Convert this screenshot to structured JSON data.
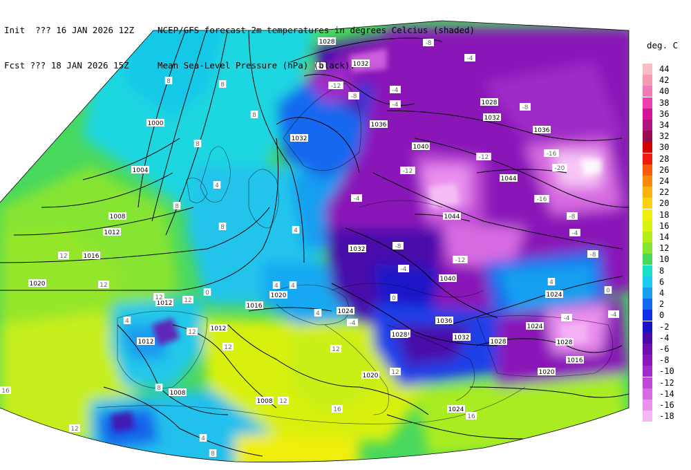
{
  "header": {
    "init_label": "Init  ??? 16 JAN 2026 12Z",
    "fcst_label": "Fcst ??? 18 JAN 2026 15Z",
    "title_line1": "NCEP/GFS forecast 2m temperatures in degrees Celcius (shaded)",
    "title_line2": "Mean Sea-Level Pressure (hPa) (black)."
  },
  "legend": {
    "title": "deg. C",
    "entries": [
      {
        "label": "44",
        "color": "#f7bcc4"
      },
      {
        "label": "42",
        "color": "#f49ab1"
      },
      {
        "label": "40",
        "color": "#f27ab6"
      },
      {
        "label": "38",
        "color": "#ee3fb0"
      },
      {
        "label": "36",
        "color": "#d4159a"
      },
      {
        "label": "34",
        "color": "#b0157c"
      },
      {
        "label": "32",
        "color": "#9a0a52"
      },
      {
        "label": "30",
        "color": "#d40000"
      },
      {
        "label": "28",
        "color": "#f21a0e"
      },
      {
        "label": "26",
        "color": "#fa5a0a"
      },
      {
        "label": "24",
        "color": "#fb8a0c"
      },
      {
        "label": "22",
        "color": "#fbb10e"
      },
      {
        "label": "20",
        "color": "#fbd20e"
      },
      {
        "label": "18",
        "color": "#f2ef0f"
      },
      {
        "label": "16",
        "color": "#d9f20f"
      },
      {
        "label": "14",
        "color": "#b3ee1c"
      },
      {
        "label": "12",
        "color": "#86e432"
      },
      {
        "label": "10",
        "color": "#48d85e"
      },
      {
        "label": "8",
        "color": "#19e0c8"
      },
      {
        "label": "6",
        "color": "#1acaf0"
      },
      {
        "label": "4",
        "color": "#189ff0"
      },
      {
        "label": "2",
        "color": "#1468ee"
      },
      {
        "label": "0",
        "color": "#0f2ee8"
      },
      {
        "label": "-2",
        "color": "#1a12c8"
      },
      {
        "label": "-4",
        "color": "#4a0aaa"
      },
      {
        "label": "-6",
        "color": "#6c10b0"
      },
      {
        "label": "-8",
        "color": "#8a18b8"
      },
      {
        "label": "-10",
        "color": "#a02cc8"
      },
      {
        "label": "-12",
        "color": "#c048d6"
      },
      {
        "label": "-14",
        "color": "#d86ae2"
      },
      {
        "label": "-16",
        "color": "#ea90ee"
      },
      {
        "label": "-18",
        "color": "#f6b6f6"
      }
    ]
  },
  "isobars": [
    {
      "label": "1028"
    },
    {
      "label": "1032"
    },
    {
      "label": "1028"
    },
    {
      "label": "1032"
    },
    {
      "label": "1036"
    },
    {
      "label": "1036"
    },
    {
      "label": "1040"
    },
    {
      "label": "1032"
    },
    {
      "label": "1000"
    },
    {
      "label": "1004"
    },
    {
      "label": "1008"
    },
    {
      "label": "1012"
    },
    {
      "label": "1016"
    },
    {
      "label": "1020"
    },
    {
      "label": "1044"
    },
    {
      "label": "1044"
    },
    {
      "label": "1040"
    },
    {
      "label": "1036"
    },
    {
      "label": "1032"
    },
    {
      "label": "1028"
    },
    {
      "label": "1024"
    },
    {
      "label": "1024"
    },
    {
      "label": "1028"
    },
    {
      "label": "1016"
    },
    {
      "label": "1020"
    },
    {
      "label": "1024"
    },
    {
      "label": "1020"
    },
    {
      "label": "1020"
    },
    {
      "label": "1016"
    },
    {
      "label": "1020"
    },
    {
      "label": "1024"
    },
    {
      "label": "1012"
    },
    {
      "label": "1012"
    },
    {
      "label": "1012"
    },
    {
      "label": "1008"
    },
    {
      "label": "1008"
    },
    {
      "label": "1032"
    },
    {
      "label": "1028"
    }
  ],
  "temp_labels": [
    {
      "label": "8"
    },
    {
      "label": "8"
    },
    {
      "label": "8"
    },
    {
      "label": "8"
    },
    {
      "label": "4"
    },
    {
      "label": "8"
    },
    {
      "label": "4"
    },
    {
      "label": "8"
    },
    {
      "label": "12"
    },
    {
      "label": "12"
    },
    {
      "label": "12"
    },
    {
      "label": "12"
    },
    {
      "label": "12"
    },
    {
      "label": "4"
    },
    {
      "label": "4"
    },
    {
      "label": "0"
    },
    {
      "label": "-4"
    },
    {
      "label": "-8"
    },
    {
      "label": "-4"
    },
    {
      "label": "-12"
    },
    {
      "label": "-8"
    },
    {
      "label": "-4"
    },
    {
      "label": "-4"
    },
    {
      "label": "-8"
    },
    {
      "label": "-12"
    },
    {
      "label": "-16"
    },
    {
      "label": "-20"
    },
    {
      "label": "-16"
    },
    {
      "label": "-12"
    },
    {
      "label": "-12"
    },
    {
      "label": "-4"
    },
    {
      "label": "-8"
    },
    {
      "label": "-4"
    },
    {
      "label": "-8"
    },
    {
      "label": "-4"
    },
    {
      "label": "-8"
    },
    {
      "label": "4"
    },
    {
      "label": "0"
    },
    {
      "label": "-4"
    },
    {
      "label": "4"
    },
    {
      "label": "0"
    },
    {
      "label": "-4"
    },
    {
      "label": "12"
    },
    {
      "label": "16"
    },
    {
      "label": "12"
    },
    {
      "label": "16"
    },
    {
      "label": "12"
    },
    {
      "label": "8"
    },
    {
      "label": "4"
    },
    {
      "label": "12"
    },
    {
      "label": "16"
    },
    {
      "label": "4"
    },
    {
      "label": "8"
    },
    {
      "label": "12"
    },
    {
      "label": "-4"
    }
  ]
}
